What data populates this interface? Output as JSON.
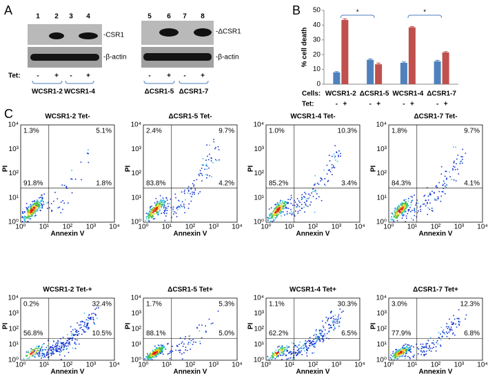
{
  "panels": [
    "A",
    "B",
    "C"
  ],
  "blots": [
    {
      "lanes": [
        "1",
        "2",
        "3",
        "4"
      ],
      "bands": [
        "-CSR1",
        "-β-actin"
      ],
      "tet_label": "Tet:",
      "tet": [
        "-",
        "+",
        "-",
        "+"
      ],
      "groups": [
        "WCSR1-2",
        "WCSR1-4"
      ]
    },
    {
      "lanes": [
        "5",
        "6",
        "7",
        "8"
      ],
      "bands": [
        "-ΔCSR1",
        "-β-actin"
      ],
      "tet": [
        "-",
        "+",
        "-",
        "+"
      ],
      "groups": [
        "ΔCSR1-5",
        "ΔCSR1-7"
      ]
    }
  ],
  "chart_data": {
    "type": "bar",
    "y_label": "% cell death",
    "category_label": "Cells:",
    "tet_label": "Tet:",
    "tet": [
      "-",
      "+"
    ],
    "categories": [
      "WCSR1-2",
      "ΔCSR1-5",
      "WCSR1-4",
      "ΔCSR1-7"
    ],
    "series": [
      {
        "color": "#4f81bd",
        "values": [
          8,
          16.5,
          14.5,
          15.5
        ],
        "errors": [
          0.5,
          0.6,
          0.6,
          0.7
        ]
      },
      {
        "color": "#c0504d",
        "values": [
          43.5,
          13.5,
          38.5,
          21.5
        ],
        "errors": [
          0.8,
          0.8,
          0.5,
          0.6
        ]
      }
    ],
    "ylim": [
      0,
      50
    ],
    "yticks": [
      0,
      10,
      20,
      30,
      40,
      50
    ],
    "annotations": [
      {
        "text": "*",
        "categories": [
          "WCSR1-2",
          "ΔCSR1-5"
        ]
      },
      {
        "text": "*",
        "categories": [
          "WCSR1-4",
          "ΔCSR1-7"
        ]
      }
    ]
  },
  "flow": {
    "x_label": "Annexin V",
    "y_label": "PI",
    "ticks": [
      "10⁰",
      "10¹",
      "10²",
      "10³",
      "10⁴"
    ],
    "plots": [
      {
        "title": "WCSR1-2  Tet-",
        "ul": "1.3%",
        "ur": "5.1%",
        "ll": "91.8%",
        "lr": "1.8%"
      },
      {
        "title": "ΔCSR1-5 Tet-",
        "ul": "2.4%",
        "ur": "9.7%",
        "ll": "83.8%",
        "lr": "4.2%"
      },
      {
        "title": "WCSR1-4  Tet-",
        "ul": "1.0%",
        "ur": "10.3%",
        "ll": "85.2%",
        "lr": "3.4%"
      },
      {
        "title": "ΔCSR1-7  Tet-",
        "ul": "1.8%",
        "ur": "9.7%",
        "ll": "84.3%",
        "lr": "4.1%"
      },
      {
        "title": "WCSR1-2  Tet-+",
        "ul": "0.2%",
        "ur": "32.4%",
        "ll": "56.8%",
        "lr": "10.5%"
      },
      {
        "title": "ΔCSR1-5 Tet+",
        "ul": "1.7%",
        "ur": "5.3%",
        "ll": "88.1%",
        "lr": "5.0%"
      },
      {
        "title": "WCSR1-4  Tet+",
        "ul": "1.1%",
        "ur": "30.3%",
        "ll": "62.2%",
        "lr": "6.5%"
      },
      {
        "title": "ΔCSR1-7  Tet+",
        "ul": "3.0%",
        "ur": "12.3%",
        "ll": "77.9%",
        "lr": "6.8%"
      }
    ]
  }
}
